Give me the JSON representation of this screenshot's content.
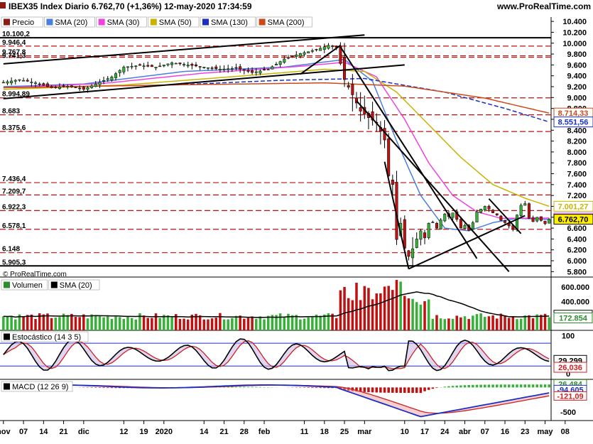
{
  "header": {
    "title": "IBEX35 Index Diario 6.762,70 (+1,36%) 12-may-2020 17:34:59",
    "website": "www.ProRealTime.com"
  },
  "copyright": "© ProRealTime.com",
  "price_panel": {
    "legend": [
      {
        "label": "Precio",
        "color": "#8c1c13"
      },
      {
        "label": "SMA (20)",
        "color": "#4a7fe0"
      },
      {
        "label": "SMA (30)",
        "color": "#ee44dd"
      },
      {
        "label": "SMA (50)",
        "color": "#c8b400"
      },
      {
        "label": "SMA (130)",
        "color": "#1b2fc4"
      },
      {
        "label": "SMA (200)",
        "color": "#cc4a1a"
      }
    ],
    "y_ticks": [
      "10.400",
      "10.200",
      "10.000",
      "9.800",
      "9.600",
      "9.400",
      "9.200",
      "9.000",
      "8.800",
      "8.600",
      "8.400",
      "8.200",
      "8.000",
      "7.800",
      "7.600",
      "7.400",
      "7.200",
      "7.000",
      "6.800",
      "6.600",
      "6.400",
      "6.200",
      "6.000",
      "5.800"
    ],
    "y_tick_values": [
      10400,
      10200,
      10000,
      9800,
      9600,
      9400,
      9200,
      9000,
      8800,
      8600,
      8400,
      8200,
      8000,
      7800,
      7600,
      7400,
      7200,
      7000,
      6800,
      6600,
      6400,
      6200,
      6000,
      5800
    ],
    "ylim": [
      5700,
      10480
    ],
    "levels": [
      {
        "label": "10.100,2",
        "value": 10100.2,
        "style": "solid"
      },
      {
        "label": "9.946,4",
        "value": 9946.4,
        "style": "dashed"
      },
      {
        "label": "9.767,8",
        "value": 9767.8,
        "style": "dashed"
      },
      {
        "label": "9.741,3",
        "value": 9741.3,
        "style": "dashed"
      },
      {
        "label": "8.994,89",
        "value": 8994.89,
        "style": "dashed"
      },
      {
        "label": "8.683",
        "value": 8683,
        "style": "dashed"
      },
      {
        "label": "8.375,6",
        "value": 8375.6,
        "style": "dashed"
      },
      {
        "label": "7.436,4",
        "value": 7436.4,
        "style": "dashed"
      },
      {
        "label": "7.209,7",
        "value": 7209.7,
        "style": "dashed"
      },
      {
        "label": "6.922,3",
        "value": 6922.3,
        "style": "dashed"
      },
      {
        "label": "6.578,1",
        "value": 6578.1,
        "style": "dashed"
      },
      {
        "label": "6.148",
        "value": 6148,
        "style": "dashed"
      },
      {
        "label": "5.905,3",
        "value": 5905.3,
        "style": "solid"
      }
    ],
    "badges": [
      {
        "label": "8.714,33",
        "value": 8714.33,
        "color": "#cc4a1a"
      },
      {
        "label": "8.551,56",
        "value": 8551.56,
        "color": "#1b2fc4"
      },
      {
        "label": "7.001,27",
        "value": 7001.27,
        "color": "#c8b400"
      },
      {
        "label": "6.784,96",
        "value": 6784.96,
        "color": "#ee44dd"
      },
      {
        "label": "6.762,70",
        "value": 6762.7,
        "color": "#000000",
        "bg": "#ffee00"
      }
    ]
  },
  "volume_panel": {
    "legend": [
      {
        "label": "Volumen",
        "color": "#2e8b2e"
      },
      {
        "label": "SMA (20)",
        "color": "#000000"
      }
    ],
    "y_ticks": [
      "600.000",
      "400.000",
      "200.000"
    ],
    "y_tick_values": [
      600000,
      400000,
      200000
    ],
    "ylim": [
      0,
      720000
    ],
    "badges": [
      {
        "label": "209.636",
        "value": 209636,
        "color": "#000000"
      },
      {
        "label": "172.854",
        "value": 172854,
        "color": "#2e8b2e"
      }
    ]
  },
  "stoch_panel": {
    "legend": [
      {
        "label": "Estocástico (14 3 5)",
        "color": "#000000"
      }
    ],
    "y_ticks": [
      "100",
      "0"
    ],
    "y_tick_values": [
      100,
      0
    ],
    "ylim": [
      -15,
      112
    ],
    "badges": [
      {
        "label": "29,299",
        "value": 29.299,
        "color": "#000000"
      },
      {
        "label": "26,036",
        "value": 26.036,
        "color": "#cc2222"
      }
    ]
  },
  "macd_panel": {
    "legend": [
      {
        "label": "MACD (12 26 9)",
        "color": "#000000"
      }
    ],
    "y_ticks": [
      "-500"
    ],
    "y_tick_values": [
      -500
    ],
    "ylim": [
      -640,
      120
    ],
    "badges": [
      {
        "label": "26,484",
        "value": 26.484,
        "color": "#2e8b2e"
      },
      {
        "label": "-94,605",
        "value": -94.605,
        "color": "#1b2fc4"
      },
      {
        "label": "-121,09",
        "value": -121.09,
        "color": "#cc2222"
      }
    ]
  },
  "x_axis": {
    "labels": [
      "nov",
      "07",
      "14",
      "21",
      "dic",
      "12",
      "19",
      "2020",
      "14",
      "21",
      "28",
      "feb",
      "11",
      "18",
      "25",
      "mar",
      "10",
      "17",
      "24",
      "abr",
      "07",
      "16",
      "23",
      "may",
      "08"
    ],
    "bar_index": [
      0,
      5,
      10,
      15,
      20,
      30,
      35,
      40,
      50,
      55,
      60,
      65,
      75,
      80,
      85,
      90,
      100,
      105,
      110,
      115,
      120,
      125,
      130,
      135,
      140
    ]
  },
  "chart_data": {
    "type": "candlestick",
    "title": "IBEX35 Index Diario 6.762,70 (+1,36%) 12-may-2020 17:34:59",
    "last_close": 6762.7,
    "change_pct": 1.36,
    "date": "12-may-2020",
    "x_labels": [
      "nov",
      "07",
      "14",
      "21",
      "dic",
      "12",
      "19",
      "2020",
      "14",
      "21",
      "28",
      "feb",
      "11",
      "18",
      "25",
      "mar",
      "10",
      "17",
      "24",
      "abr",
      "07",
      "16",
      "23",
      "may",
      "08"
    ],
    "close_anchors": [
      {
        "bar": 0,
        "close": 9280
      },
      {
        "bar": 4,
        "close": 9330
      },
      {
        "bar": 8,
        "close": 9270
      },
      {
        "bar": 12,
        "close": 9180
      },
      {
        "bar": 16,
        "close": 9210
      },
      {
        "bar": 20,
        "close": 9150
      },
      {
        "bar": 23,
        "close": 9250
      },
      {
        "bar": 27,
        "close": 9380
      },
      {
        "bar": 30,
        "close": 9560
      },
      {
        "bar": 34,
        "close": 9590
      },
      {
        "bar": 38,
        "close": 9560
      },
      {
        "bar": 42,
        "close": 9640
      },
      {
        "bar": 46,
        "close": 9600
      },
      {
        "bar": 50,
        "close": 9560
      },
      {
        "bar": 54,
        "close": 9520
      },
      {
        "bar": 58,
        "close": 9540
      },
      {
        "bar": 62,
        "close": 9460
      },
      {
        "bar": 66,
        "close": 9520
      },
      {
        "bar": 70,
        "close": 9710
      },
      {
        "bar": 74,
        "close": 9810
      },
      {
        "bar": 78,
        "close": 9880
      },
      {
        "bar": 81,
        "close": 9960
      },
      {
        "bar": 83,
        "close": 9920
      },
      {
        "bar": 85,
        "close": 9330
      },
      {
        "bar": 87,
        "close": 9050
      },
      {
        "bar": 89,
        "close": 8750
      },
      {
        "bar": 91,
        "close": 8630
      },
      {
        "bar": 93,
        "close": 8540
      },
      {
        "bar": 95,
        "close": 8220
      },
      {
        "bar": 96,
        "close": 7560
      },
      {
        "bar": 97,
        "close": 7400
      },
      {
        "bar": 98,
        "close": 6390
      },
      {
        "bar": 99,
        "close": 6690
      },
      {
        "bar": 100,
        "close": 6230
      },
      {
        "bar": 101,
        "close": 6080
      },
      {
        "bar": 102,
        "close": 6220
      },
      {
        "bar": 103,
        "close": 6400
      },
      {
        "bar": 104,
        "close": 6550
      },
      {
        "bar": 105,
        "close": 6420
      },
      {
        "bar": 106,
        "close": 6690
      },
      {
        "bar": 107,
        "close": 6710
      },
      {
        "bar": 108,
        "close": 6600
      },
      {
        "bar": 109,
        "close": 6750
      },
      {
        "bar": 110,
        "close": 6860
      },
      {
        "bar": 111,
        "close": 6810
      },
      {
        "bar": 112,
        "close": 6880
      },
      {
        "bar": 113,
        "close": 6760
      },
      {
        "bar": 114,
        "close": 6600
      },
      {
        "bar": 115,
        "close": 6650
      },
      {
        "bar": 116,
        "close": 6560
      },
      {
        "bar": 117,
        "close": 6700
      },
      {
        "bar": 118,
        "close": 6900
      },
      {
        "bar": 119,
        "close": 6950
      },
      {
        "bar": 120,
        "close": 7000
      },
      {
        "bar": 121,
        "close": 6950
      },
      {
        "bar": 122,
        "close": 6880
      },
      {
        "bar": 123,
        "close": 6840
      },
      {
        "bar": 124,
        "close": 6740
      },
      {
        "bar": 125,
        "close": 6700
      },
      {
        "bar": 126,
        "close": 6640
      },
      {
        "bar": 127,
        "close": 6580
      },
      {
        "bar": 128,
        "close": 6840
      },
      {
        "bar": 129,
        "close": 7020
      },
      {
        "bar": 130,
        "close": 7050
      },
      {
        "bar": 131,
        "close": 6780
      },
      {
        "bar": 132,
        "close": 6720
      },
      {
        "bar": 133,
        "close": 6800
      },
      {
        "bar": 134,
        "close": 6740
      },
      {
        "bar": 135,
        "close": 6680
      },
      {
        "bar": 136,
        "close": 6762.7
      }
    ],
    "sma": {
      "SMA (20)": [
        [
          0,
          9200
        ],
        [
          20,
          9250
        ],
        [
          45,
          9480
        ],
        [
          70,
          9560
        ],
        [
          85,
          9700
        ],
        [
          92,
          9300
        ],
        [
          98,
          8200
        ],
        [
          104,
          7200
        ],
        [
          110,
          6600
        ],
        [
          116,
          6550
        ],
        [
          122,
          6700
        ],
        [
          128,
          6780
        ],
        [
          136,
          6760
        ]
      ],
      "SMA (30)": [
        [
          0,
          9180
        ],
        [
          25,
          9260
        ],
        [
          50,
          9450
        ],
        [
          75,
          9580
        ],
        [
          85,
          9650
        ],
        [
          93,
          9380
        ],
        [
          100,
          8600
        ],
        [
          106,
          7800
        ],
        [
          112,
          7200
        ],
        [
          118,
          6900
        ],
        [
          124,
          6780
        ],
        [
          136,
          6785
        ]
      ],
      "SMA (50)": [
        [
          0,
          9150
        ],
        [
          30,
          9230
        ],
        [
          60,
          9400
        ],
        [
          80,
          9520
        ],
        [
          90,
          9480
        ],
        [
          98,
          9100
        ],
        [
          106,
          8500
        ],
        [
          114,
          7900
        ],
        [
          122,
          7400
        ],
        [
          130,
          7150
        ],
        [
          136,
          7001
        ]
      ],
      "SMA (130)": [
        [
          45,
          9240
        ],
        [
          70,
          9320
        ],
        [
          90,
          9350
        ],
        [
          110,
          9100
        ],
        [
          125,
          8800
        ],
        [
          136,
          8552
        ]
      ],
      "SMA (200)": [
        [
          0,
          9180
        ],
        [
          40,
          9230
        ],
        [
          80,
          9270
        ],
        [
          100,
          9210
        ],
        [
          120,
          8990
        ],
        [
          136,
          8714
        ]
      ]
    },
    "xlim": [
      0,
      137
    ],
    "ylim": [
      5700,
      10480
    ]
  }
}
